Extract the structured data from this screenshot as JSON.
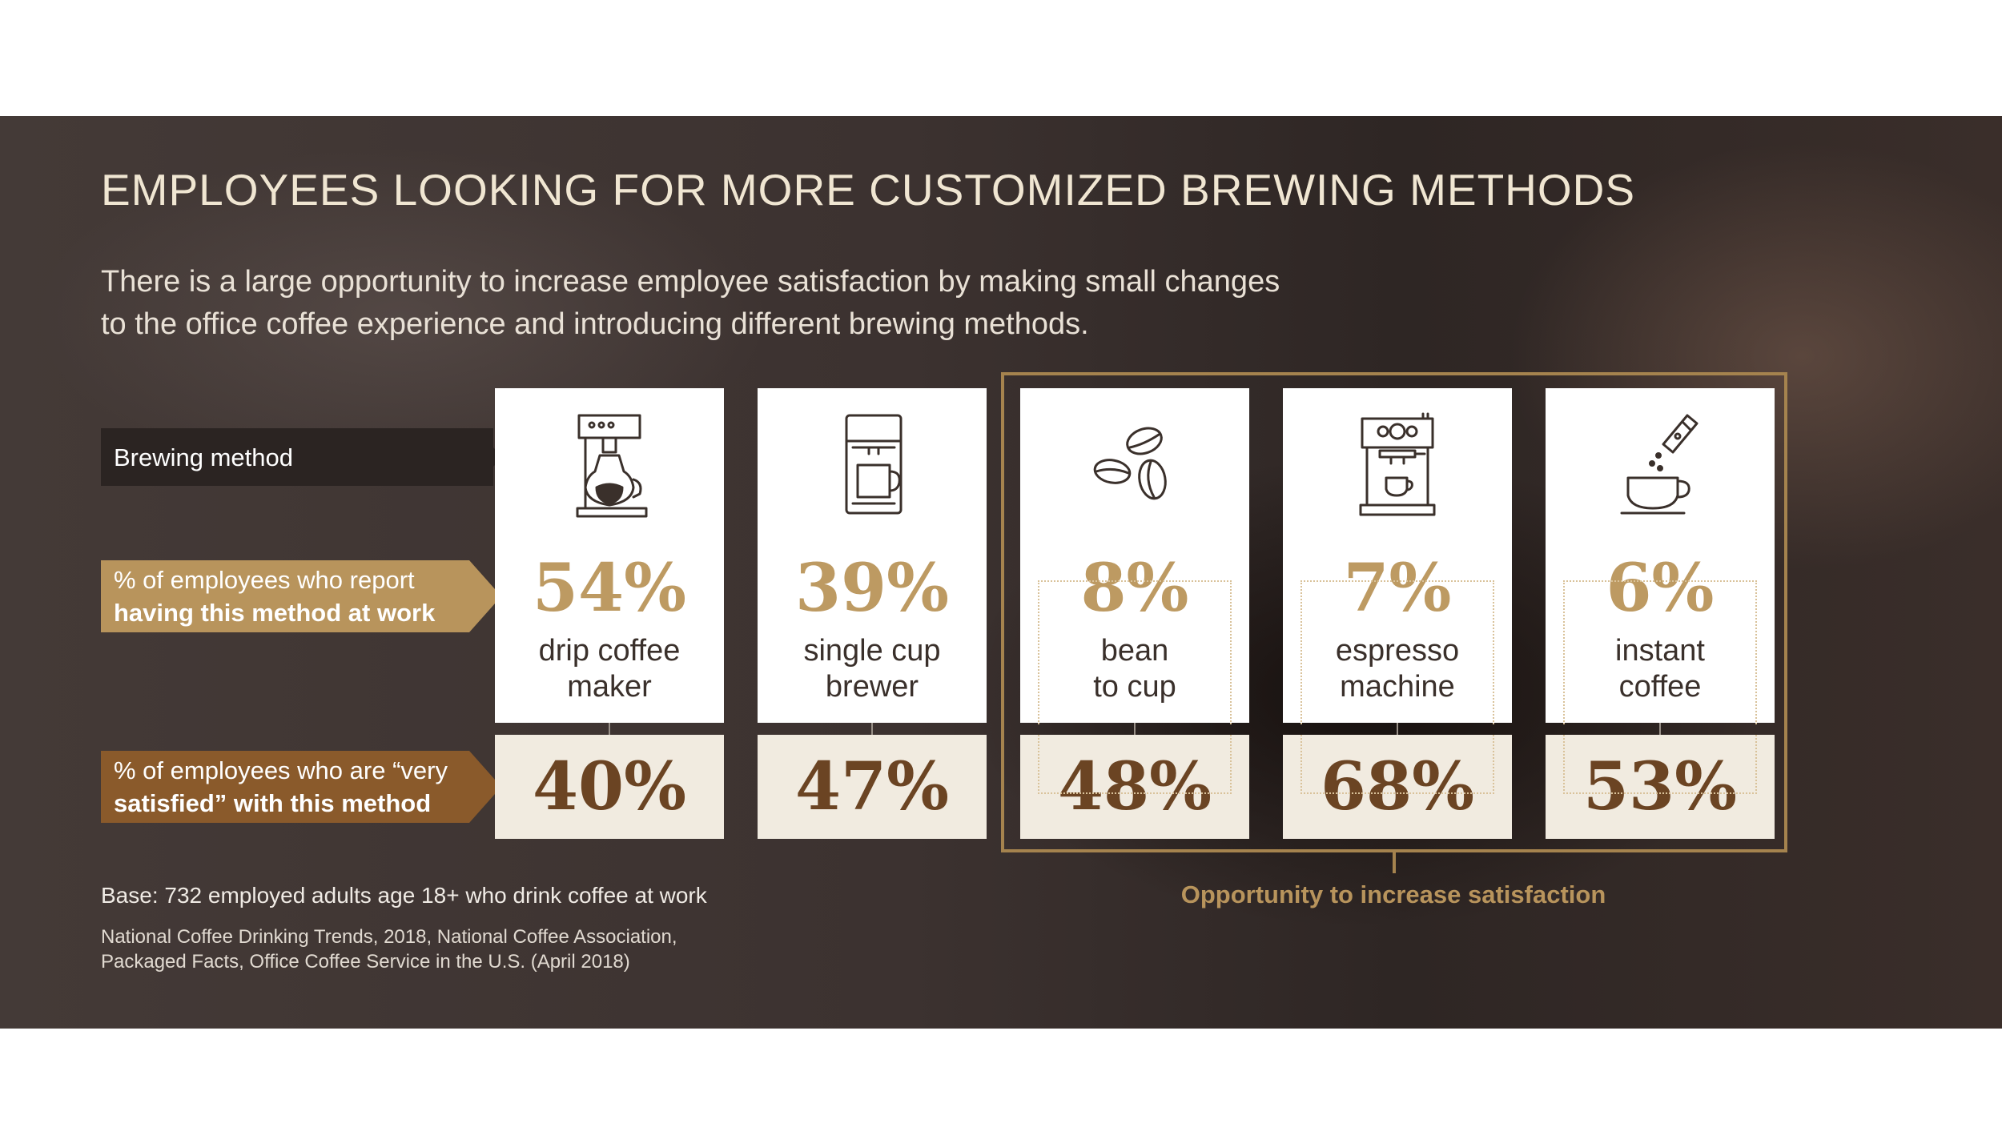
{
  "title": "EMPLOYEES LOOKING FOR MORE CUSTOMIZED BREWING METHODS",
  "subtitle": "There is a large opportunity to increase employee satisfaction by making small changes to the office coffee experience and introducing different brewing methods.",
  "row_labels": {
    "brewing_method": "Brewing method",
    "have_at_work_line1": "% of employees who report",
    "have_at_work_line2": "having this method at work",
    "satisfied_line1": "% of employees who are “very",
    "satisfied_line2": "satisfied” with this method"
  },
  "chart_data": {
    "type": "table",
    "categories": [
      "drip coffee maker",
      "single cup brewer",
      "bean to cup",
      "espresso machine",
      "instant coffee"
    ],
    "category_lines": [
      [
        "drip coffee",
        "maker"
      ],
      [
        "single cup",
        "brewer"
      ],
      [
        "bean",
        "to cup"
      ],
      [
        "espresso",
        "machine"
      ],
      [
        "instant",
        "coffee"
      ]
    ],
    "series": [
      {
        "name": "% of employees who report having this method at work",
        "values": [
          54,
          39,
          8,
          7,
          6
        ],
        "labels": [
          "54%",
          "39%",
          "8%",
          "7%",
          "6%"
        ]
      },
      {
        "name": "% of employees who are “very satisfied” with this method",
        "values": [
          40,
          47,
          48,
          68,
          53
        ],
        "labels": [
          "40%",
          "47%",
          "48%",
          "68%",
          "53%"
        ]
      }
    ],
    "highlight": {
      "categories": [
        "bean to cup",
        "espresso machine",
        "instant coffee"
      ],
      "label": "Opportunity to increase satisfaction"
    }
  },
  "icons": [
    "drip-coffee-maker-icon",
    "single-cup-brewer-icon",
    "coffee-beans-icon",
    "espresso-machine-icon",
    "instant-coffee-icon"
  ],
  "colors": {
    "gold": "#b8945c",
    "brown": "#8a5a2b",
    "dark": "#2b2422",
    "cream": "#f1ebe0"
  },
  "footer": {
    "base": "Base: 732 employed adults age 18+ who drink coffee at work",
    "source_line1": "National Coffee Drinking Trends, 2018, National Coffee Association,",
    "source_line2": "Packaged Facts, Office Coffee Service in the U.S. (April 2018)"
  }
}
